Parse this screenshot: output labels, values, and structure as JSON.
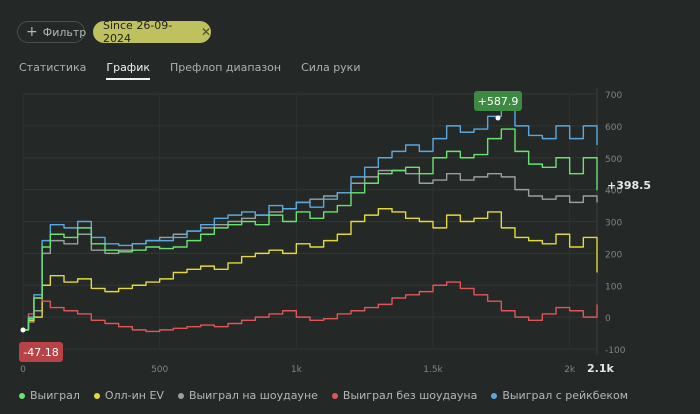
{
  "filter": {
    "label": "Фильтр",
    "icon": "plus-icon"
  },
  "date_chip": {
    "label": "Since 26-09-2024",
    "close_icon": "close-icon"
  },
  "tabs": [
    {
      "label": "Статистика",
      "active": false
    },
    {
      "label": "График",
      "active": true
    },
    {
      "label": "Префлоп диапазон",
      "active": false
    },
    {
      "label": "Сила руки",
      "active": false
    }
  ],
  "legend": [
    {
      "label": "Выиграл",
      "color": "#69e36f"
    },
    {
      "label": "Олл-ин EV",
      "color": "#e3d93a"
    },
    {
      "label": "Выиграл на шоудауне",
      "color": "#9aa09c"
    },
    {
      "label": "Выиграл без шоудауна",
      "color": "#e05558"
    },
    {
      "label": "Выиграл с рейкбеком",
      "color": "#5aa8e0"
    }
  ],
  "badges": {
    "max": "+587.9",
    "min": "-47.18",
    "final": "+398.5",
    "x_end": "2.1k"
  },
  "chart_data": {
    "type": "line",
    "xlim": [
      0,
      2100
    ],
    "ylim": [
      -100,
      700
    ],
    "x_ticks": [
      {
        "value": 0,
        "label": "0"
      },
      {
        "value": 500,
        "label": "500"
      },
      {
        "value": 1000,
        "label": "1k"
      },
      {
        "value": 1500,
        "label": "1.5k"
      },
      {
        "value": 2000,
        "label": "2k"
      }
    ],
    "y_ticks": [
      {
        "value": 700,
        "label": "700"
      },
      {
        "value": 600,
        "label": "600"
      },
      {
        "value": 500,
        "label": "500"
      },
      {
        "value": 400,
        "label": "400"
      },
      {
        "value": 300,
        "label": "300"
      },
      {
        "value": 200,
        "label": "200"
      },
      {
        "value": 100,
        "label": "100"
      },
      {
        "value": 0,
        "label": "0"
      },
      {
        "value": -100,
        "label": "-100"
      }
    ],
    "x": [
      0,
      20,
      40,
      70,
      100,
      150,
      200,
      250,
      300,
      350,
      400,
      450,
      500,
      550,
      600,
      650,
      700,
      750,
      800,
      850,
      900,
      950,
      1000,
      1050,
      1100,
      1150,
      1200,
      1250,
      1300,
      1350,
      1400,
      1450,
      1500,
      1550,
      1600,
      1650,
      1700,
      1750,
      1800,
      1850,
      1900,
      1950,
      2000,
      2050,
      2100
    ],
    "series": [
      {
        "name": "Выиграл",
        "color": "#69e36f",
        "values": [
          -40,
          -5,
          60,
          220,
          260,
          250,
          280,
          230,
          210,
          205,
          210,
          220,
          215,
          220,
          240,
          260,
          280,
          290,
          300,
          290,
          320,
          300,
          330,
          310,
          330,
          350,
          390,
          420,
          450,
          460,
          470,
          450,
          500,
          520,
          500,
          510,
          560,
          590,
          520,
          480,
          470,
          500,
          450,
          500,
          398
        ]
      },
      {
        "name": "Олл-ин EV",
        "color": "#e3d93a",
        "values": [
          -40,
          -10,
          0,
          100,
          130,
          110,
          120,
          90,
          80,
          90,
          100,
          110,
          120,
          140,
          150,
          160,
          150,
          170,
          190,
          200,
          210,
          200,
          230,
          220,
          240,
          260,
          300,
          320,
          340,
          330,
          310,
          300,
          280,
          320,
          300,
          310,
          330,
          280,
          250,
          240,
          230,
          260,
          220,
          250,
          140
        ]
      },
      {
        "name": "Выиграл на шоудауне",
        "color": "#9aa09c",
        "values": [
          -40,
          -15,
          20,
          200,
          240,
          230,
          260,
          210,
          200,
          210,
          230,
          240,
          250,
          260,
          270,
          280,
          290,
          300,
          310,
          320,
          330,
          340,
          360,
          370,
          380,
          390,
          420,
          440,
          460,
          460,
          450,
          420,
          430,
          450,
          430,
          440,
          450,
          440,
          400,
          380,
          370,
          380,
          360,
          380,
          360
        ]
      },
      {
        "name": "Выиграл без шоудауна",
        "color": "#e05558",
        "values": [
          -40,
          10,
          60,
          50,
          30,
          20,
          10,
          -10,
          -20,
          -30,
          -40,
          -45,
          -40,
          -35,
          -30,
          -25,
          -30,
          -20,
          -10,
          0,
          10,
          20,
          0,
          -10,
          -5,
          10,
          20,
          30,
          40,
          60,
          70,
          80,
          100,
          110,
          90,
          70,
          50,
          20,
          0,
          -10,
          10,
          30,
          20,
          0,
          40
        ]
      },
      {
        "name": "Выиграл с рейкбеком",
        "color": "#5aa8e0",
        "values": [
          -40,
          0,
          70,
          240,
          290,
          280,
          300,
          250,
          230,
          225,
          230,
          240,
          240,
          250,
          270,
          290,
          310,
          320,
          330,
          320,
          350,
          340,
          360,
          345,
          370,
          390,
          440,
          470,
          500,
          520,
          540,
          520,
          560,
          600,
          580,
          590,
          630,
          650,
          600,
          570,
          560,
          600,
          560,
          600,
          540
        ]
      }
    ]
  }
}
